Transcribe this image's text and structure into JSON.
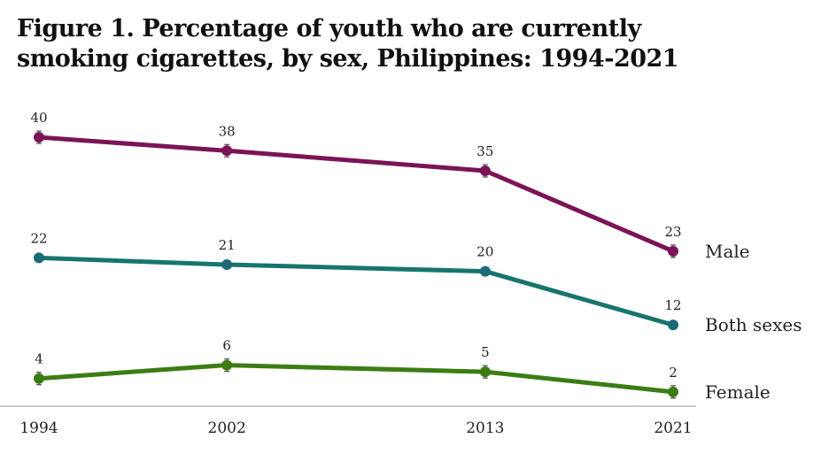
{
  "chart_data": {
    "type": "line",
    "title": "Figure 1. Percentage of youth who are currently smoking cigarettes, by sex, Philippines: 1994-2021",
    "xlabel": "",
    "ylabel": "",
    "x": [
      1994,
      2002,
      2013,
      2021
    ],
    "x_tick_labels": [
      "1994",
      "2002",
      "2013",
      "2021"
    ],
    "ylim": [
      0,
      42
    ],
    "grid": false,
    "legend": "direct labels at right end of each line",
    "series": [
      {
        "name": "Male",
        "color": "#7b1456",
        "values": [
          40,
          38,
          35,
          23
        ],
        "labels": [
          "40",
          "38",
          "35",
          "23"
        ],
        "error_bars": true
      },
      {
        "name": "Both sexes",
        "color": "#17756d",
        "values": [
          22,
          21,
          20,
          12
        ],
        "labels": [
          "22",
          "21",
          "20",
          "12"
        ],
        "error_bars": false
      },
      {
        "name": "Female",
        "color": "#3b7d13",
        "values": [
          4,
          6,
          5,
          2
        ],
        "labels": [
          "4",
          "6",
          "5",
          "2"
        ],
        "error_bars": true
      }
    ],
    "marker_colors": {
      "Male": "#7b1456",
      "Both sexes": "#1a6a78",
      "Female": "#3b7d13"
    },
    "axis_color": "#999999"
  }
}
